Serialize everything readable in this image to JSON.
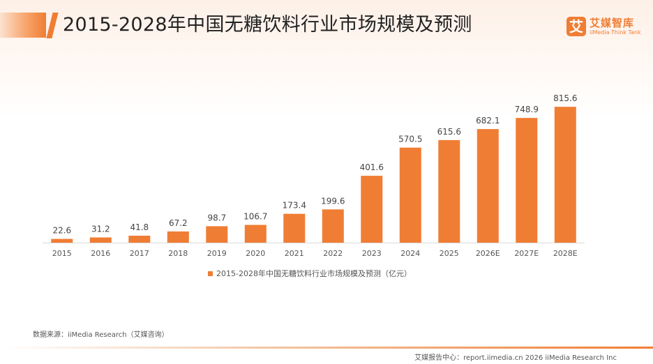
{
  "header": {
    "title": "2015-2028年中国无糖饮料行业市场规模及预测"
  },
  "logo": {
    "mark": "艾",
    "name": "艾媒智库",
    "subtitle": "iiMedia Think Tank"
  },
  "chart_data": {
    "type": "bar",
    "categories": [
      "2015",
      "2016",
      "2017",
      "2018",
      "2019",
      "2020",
      "2021",
      "2022",
      "2023",
      "2024",
      "2025",
      "2026E",
      "2027E",
      "2028E"
    ],
    "series": [
      {
        "name": "2015-2028年中国无糖饮料行业市场规模及预测（亿元）",
        "values": [
          22.6,
          31.2,
          41.8,
          67.2,
          98.7,
          106.7,
          173.4,
          199.6,
          401.6,
          570.5,
          615.6,
          682.1,
          748.9,
          815.6
        ],
        "color": "#f07d34"
      }
    ],
    "ylim": [
      0,
      900
    ],
    "grid": false,
    "legend_position": "bottom-center"
  },
  "source": "数据来源：iiMedia Research（艾媒咨询）",
  "footer": "艾媒报告中心：report.iimedia.cn  2026 iiMedia Research Inc",
  "colors": {
    "accent": "#f07d34",
    "text": "#222222",
    "muted": "#555555"
  }
}
